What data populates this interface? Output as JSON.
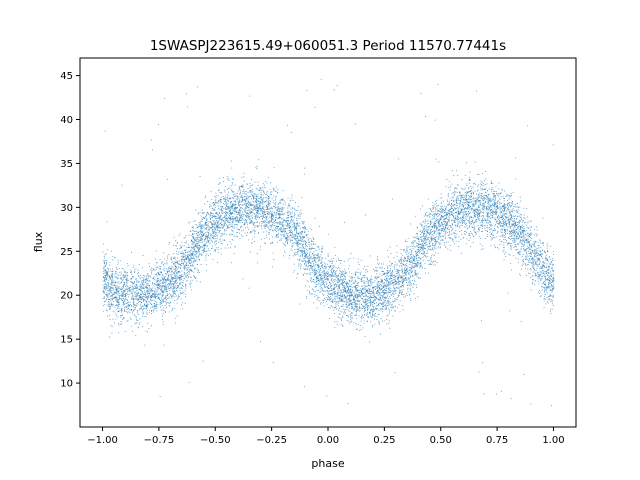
{
  "chart_data": {
    "type": "scatter",
    "title": "1SWASPJ223615.49+060051.3 Period 11570.77441s",
    "xlabel": "phase",
    "ylabel": "flux",
    "xlim": [
      -1.1,
      1.1
    ],
    "ylim": [
      5,
      47
    ],
    "xticks": [
      -1.0,
      -0.75,
      -0.5,
      -0.25,
      0.0,
      0.25,
      0.5,
      0.75,
      1.0
    ],
    "xtick_labels": [
      "−1.00",
      "−0.75",
      "−0.50",
      "−0.25",
      "0.00",
      "0.25",
      "0.50",
      "0.75",
      "1.00"
    ],
    "yticks": [
      10,
      15,
      20,
      25,
      30,
      35,
      40,
      45
    ],
    "ytick_labels": [
      "10",
      "15",
      "20",
      "25",
      "30",
      "35",
      "40",
      "45"
    ],
    "grid": false,
    "marker_color": "#1f77b4",
    "series": [
      {
        "phase_range": [
          -1.0,
          1.0
        ],
        "light_curve": {
          "min_flux": 20.0,
          "max_flux": 30.0,
          "minimum_phases": [
            -0.85,
            0.15
          ],
          "maximum_phases": [
            -0.35,
            0.65
          ],
          "scatter_sigma": 1.6
        },
        "outlier_flux_range": [
          7,
          45
        ]
      }
    ]
  }
}
